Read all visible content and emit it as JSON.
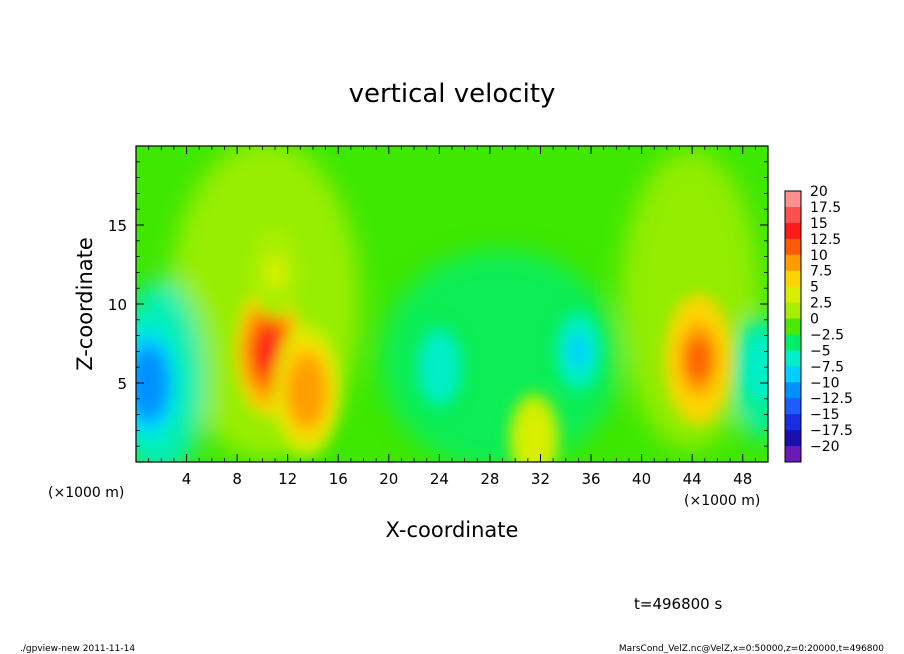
{
  "chart_data": {
    "type": "heatmap",
    "title": "vertical velocity",
    "xlabel": "X-coordinate",
    "ylabel": "Z-coordinate",
    "x_unit_left": "(×1000 m)",
    "x_unit_right": "(×1000 m)",
    "x_ticks": [
      "4",
      "8",
      "12",
      "16",
      "20",
      "24",
      "28",
      "32",
      "36",
      "40",
      "44",
      "48"
    ],
    "x_tick_values": [
      4,
      8,
      12,
      16,
      20,
      24,
      28,
      32,
      36,
      40,
      44,
      48
    ],
    "y_ticks": [
      "5",
      "10",
      "15"
    ],
    "y_tick_values": [
      5,
      10,
      15
    ],
    "xlim": [
      0,
      50
    ],
    "ylim": [
      0,
      20
    ],
    "colorbar": {
      "labels": [
        "20",
        "17.5",
        "15",
        "12.5",
        "10",
        "7.5",
        "5",
        "2.5",
        "0",
        "−2.5",
        "−5",
        "−7.5",
        "−10",
        "−12.5",
        "−15",
        "−17.5",
        "−20"
      ],
      "levels": [
        20,
        17.5,
        15,
        12.5,
        10,
        7.5,
        5,
        2.5,
        0,
        -2.5,
        -5,
        -7.5,
        -10,
        -12.5,
        -15,
        -17.5,
        -20
      ],
      "colors": [
        "#ff9090",
        "#ff5050",
        "#ff1a1a",
        "#ff5a00",
        "#ff9c00",
        "#ffd400",
        "#d8ee00",
        "#a8ee00",
        "#4ce800",
        "#00ee6a",
        "#00eec8",
        "#00d0ff",
        "#0090ff",
        "#1e5cff",
        "#1a2ee0",
        "#1a10b0",
        "#6a1ab8"
      ]
    },
    "features": [
      {
        "x": 10.5,
        "z": 7.0,
        "value": 14
      },
      {
        "x": 13.5,
        "z": 4.5,
        "value": 11
      },
      {
        "x": 44.5,
        "z": 6.5,
        "value": 12.5
      },
      {
        "x": 1.0,
        "z": 5.0,
        "value": -11
      },
      {
        "x": 24.0,
        "z": 6.0,
        "value": -6
      },
      {
        "x": 35.0,
        "z": 7.0,
        "value": -6.5
      },
      {
        "x": 49.5,
        "z": 6.0,
        "value": -6
      },
      {
        "x": 31.5,
        "z": 1.5,
        "value": 6
      },
      {
        "x": 11.0,
        "z": 12.0,
        "value": 4
      }
    ]
  },
  "annotations": {
    "time": "t=496800 s",
    "footer_left": "./gpview-new  2011-11-14",
    "footer_right": "MarsCond_VelZ.nc@VelZ,x=0:50000,z=0:20000,t=496800"
  }
}
